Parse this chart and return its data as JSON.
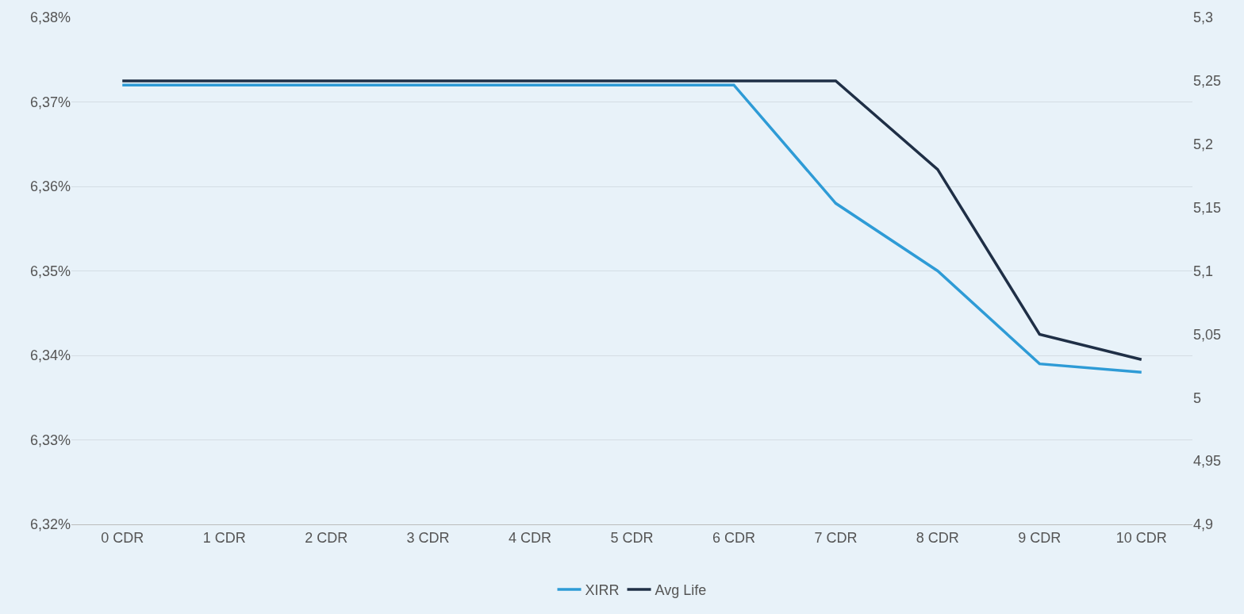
{
  "chart_data": {
    "type": "line",
    "categories": [
      "0 CDR",
      "1 CDR",
      "2 CDR",
      "3 CDR",
      "4 CDR",
      "5 CDR",
      "6 CDR",
      "7 CDR",
      "8 CDR",
      "9 CDR",
      "10 CDR"
    ],
    "series": [
      {
        "name": "XIRR",
        "color": "#2e9bd6",
        "values": [
          6.372,
          6.372,
          6.372,
          6.372,
          6.372,
          6.372,
          6.372,
          6.358,
          6.35,
          6.339,
          6.338
        ]
      },
      {
        "name": "Avg Life",
        "color": "#1f2f46",
        "axis": "y2",
        "values": [
          5.25,
          5.25,
          5.25,
          5.25,
          5.25,
          5.25,
          5.25,
          5.25,
          5.18,
          5.05,
          5.03
        ]
      }
    ],
    "ylim": [
      6.32,
      6.38
    ],
    "yticks": [
      {
        "value": 6.32,
        "label": "6,32%"
      },
      {
        "value": 6.33,
        "label": "6,33%"
      },
      {
        "value": 6.34,
        "label": "6,34%"
      },
      {
        "value": 6.35,
        "label": "6,35%"
      },
      {
        "value": 6.36,
        "label": "6,36%"
      },
      {
        "value": 6.37,
        "label": "6,37%"
      },
      {
        "value": 6.38,
        "label": "6,38%"
      }
    ],
    "y2lim": [
      4.9,
      5.3
    ],
    "y2ticks": [
      {
        "value": 4.9,
        "label": "4,9"
      },
      {
        "value": 4.95,
        "label": "4,95"
      },
      {
        "value": 5,
        "label": "5"
      },
      {
        "value": 5.05,
        "label": "5,05"
      },
      {
        "value": 5.1,
        "label": "5,1"
      },
      {
        "value": 5.15,
        "label": "5,15"
      },
      {
        "value": 5.2,
        "label": "5,2"
      },
      {
        "value": 5.25,
        "label": "5,25"
      },
      {
        "value": 5.3,
        "label": "5,3"
      }
    ],
    "grid": "y",
    "legend": "bottom",
    "marker": "none",
    "line_style": "solid"
  }
}
